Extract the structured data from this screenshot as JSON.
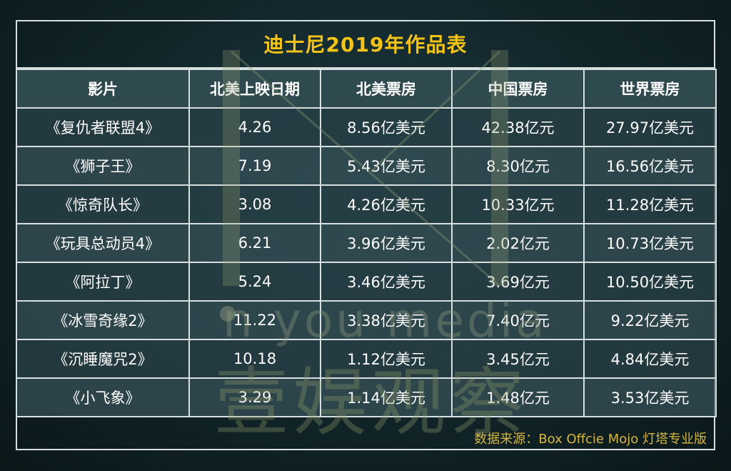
{
  "title": "迪士尼2019年作品表",
  "headers": [
    "影片",
    "北美上映日期",
    "北美票房",
    "中国票房",
    "世界票房"
  ],
  "rows": [
    [
      "《复仇者联盟4》",
      "4.26",
      "8.56亿美元",
      "42.38亿元",
      "27.97亿美元"
    ],
    [
      "《狮子王》",
      "7.19",
      "5.43亿美元",
      "8.30亿元",
      "16.56亿美元"
    ],
    [
      "《惊奇队长》",
      "3.08",
      "4.26亿美元",
      "10.33亿元",
      "11.28亿美元"
    ],
    [
      "《玩具总动员4》",
      "6.21",
      "3.96亿美元",
      "2.02亿元",
      "10.73亿美元"
    ],
    [
      "《阿拉丁》",
      "5.24",
      "3.46亿美元",
      "3.69亿元",
      "10.50亿美元"
    ],
    [
      "《冰雪奇缘2》",
      "11.22",
      "3.38亿美元",
      "7.40亿元",
      "9.22亿美元"
    ],
    [
      "《沉睡魔咒2》",
      "10.18",
      "1.12亿美元",
      "3.45亿元",
      "4.84亿美元"
    ],
    [
      "《小飞象》",
      "3.29",
      "1.14亿美元",
      "1.48亿元",
      "3.53亿美元"
    ]
  ],
  "source": "数据来源：Box Offcie Mojo 灯塔专业版",
  "watermark": {
    "en": "n you media",
    "cn": "壹娱观察"
  },
  "colors": {
    "title": "#f3c318",
    "source": "#d7b640",
    "border": "#d8dfe0",
    "background": "#112529"
  }
}
